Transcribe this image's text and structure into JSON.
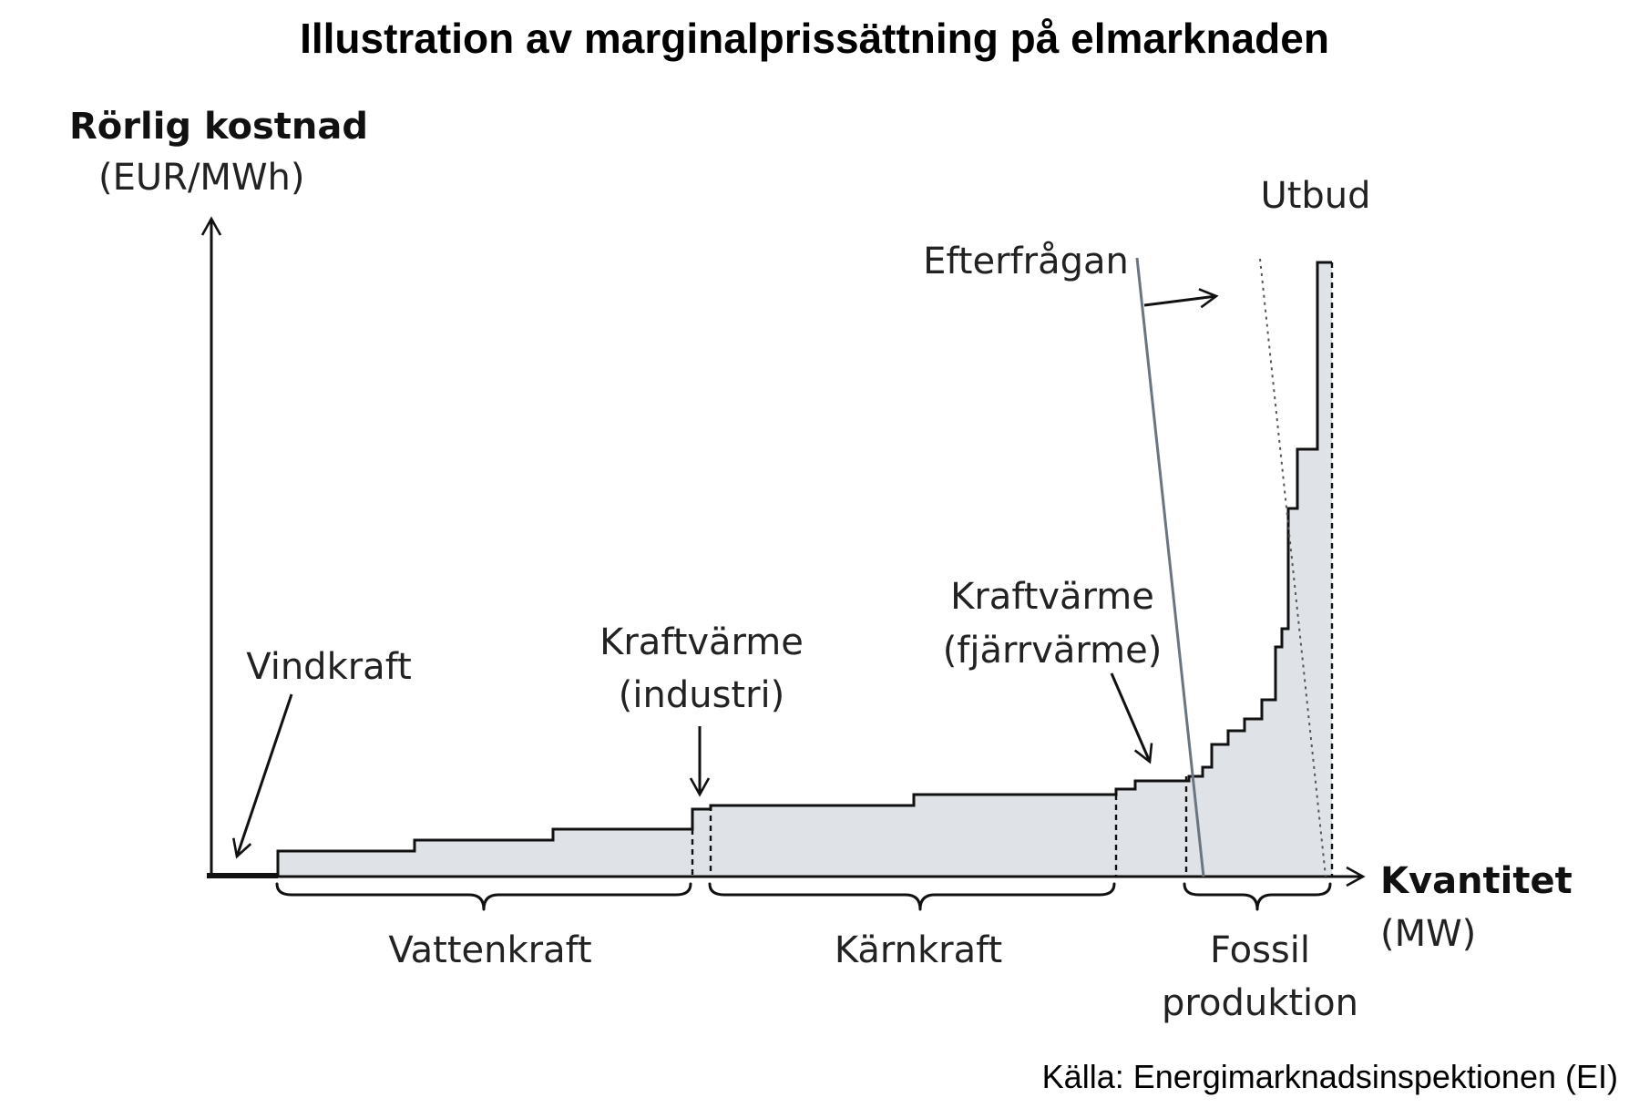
{
  "title": "Illustration av marginalprissättning på elmarknaden",
  "y_axis": {
    "label": "Rörlig kostnad",
    "unit": "(EUR/MWh)"
  },
  "x_axis": {
    "label": "Kvantitet",
    "unit": "(MW)"
  },
  "labels": {
    "vindkraft": "Vindkraft",
    "kraftvarme_industri_line1": "Kraftvärme",
    "kraftvarme_industri_line2": "(industri)",
    "kraftvarme_fjarr_line1": "Kraftvärme",
    "kraftvarme_fjarr_line2": "(fjärrvärme)",
    "efterfragan": "Efterfrågan",
    "utbud": "Utbud"
  },
  "groups": {
    "vattenkraft": "Vattenkraft",
    "karnkraft": "Kärnkraft",
    "fossil_line1": "Fossil",
    "fossil_line2": "produktion"
  },
  "source": "Källa: Energimarknadsinspektionen (EI)",
  "colors": {
    "fill": "#dfe3e8",
    "stroke": "#111111",
    "demand": "#6b7580"
  }
}
